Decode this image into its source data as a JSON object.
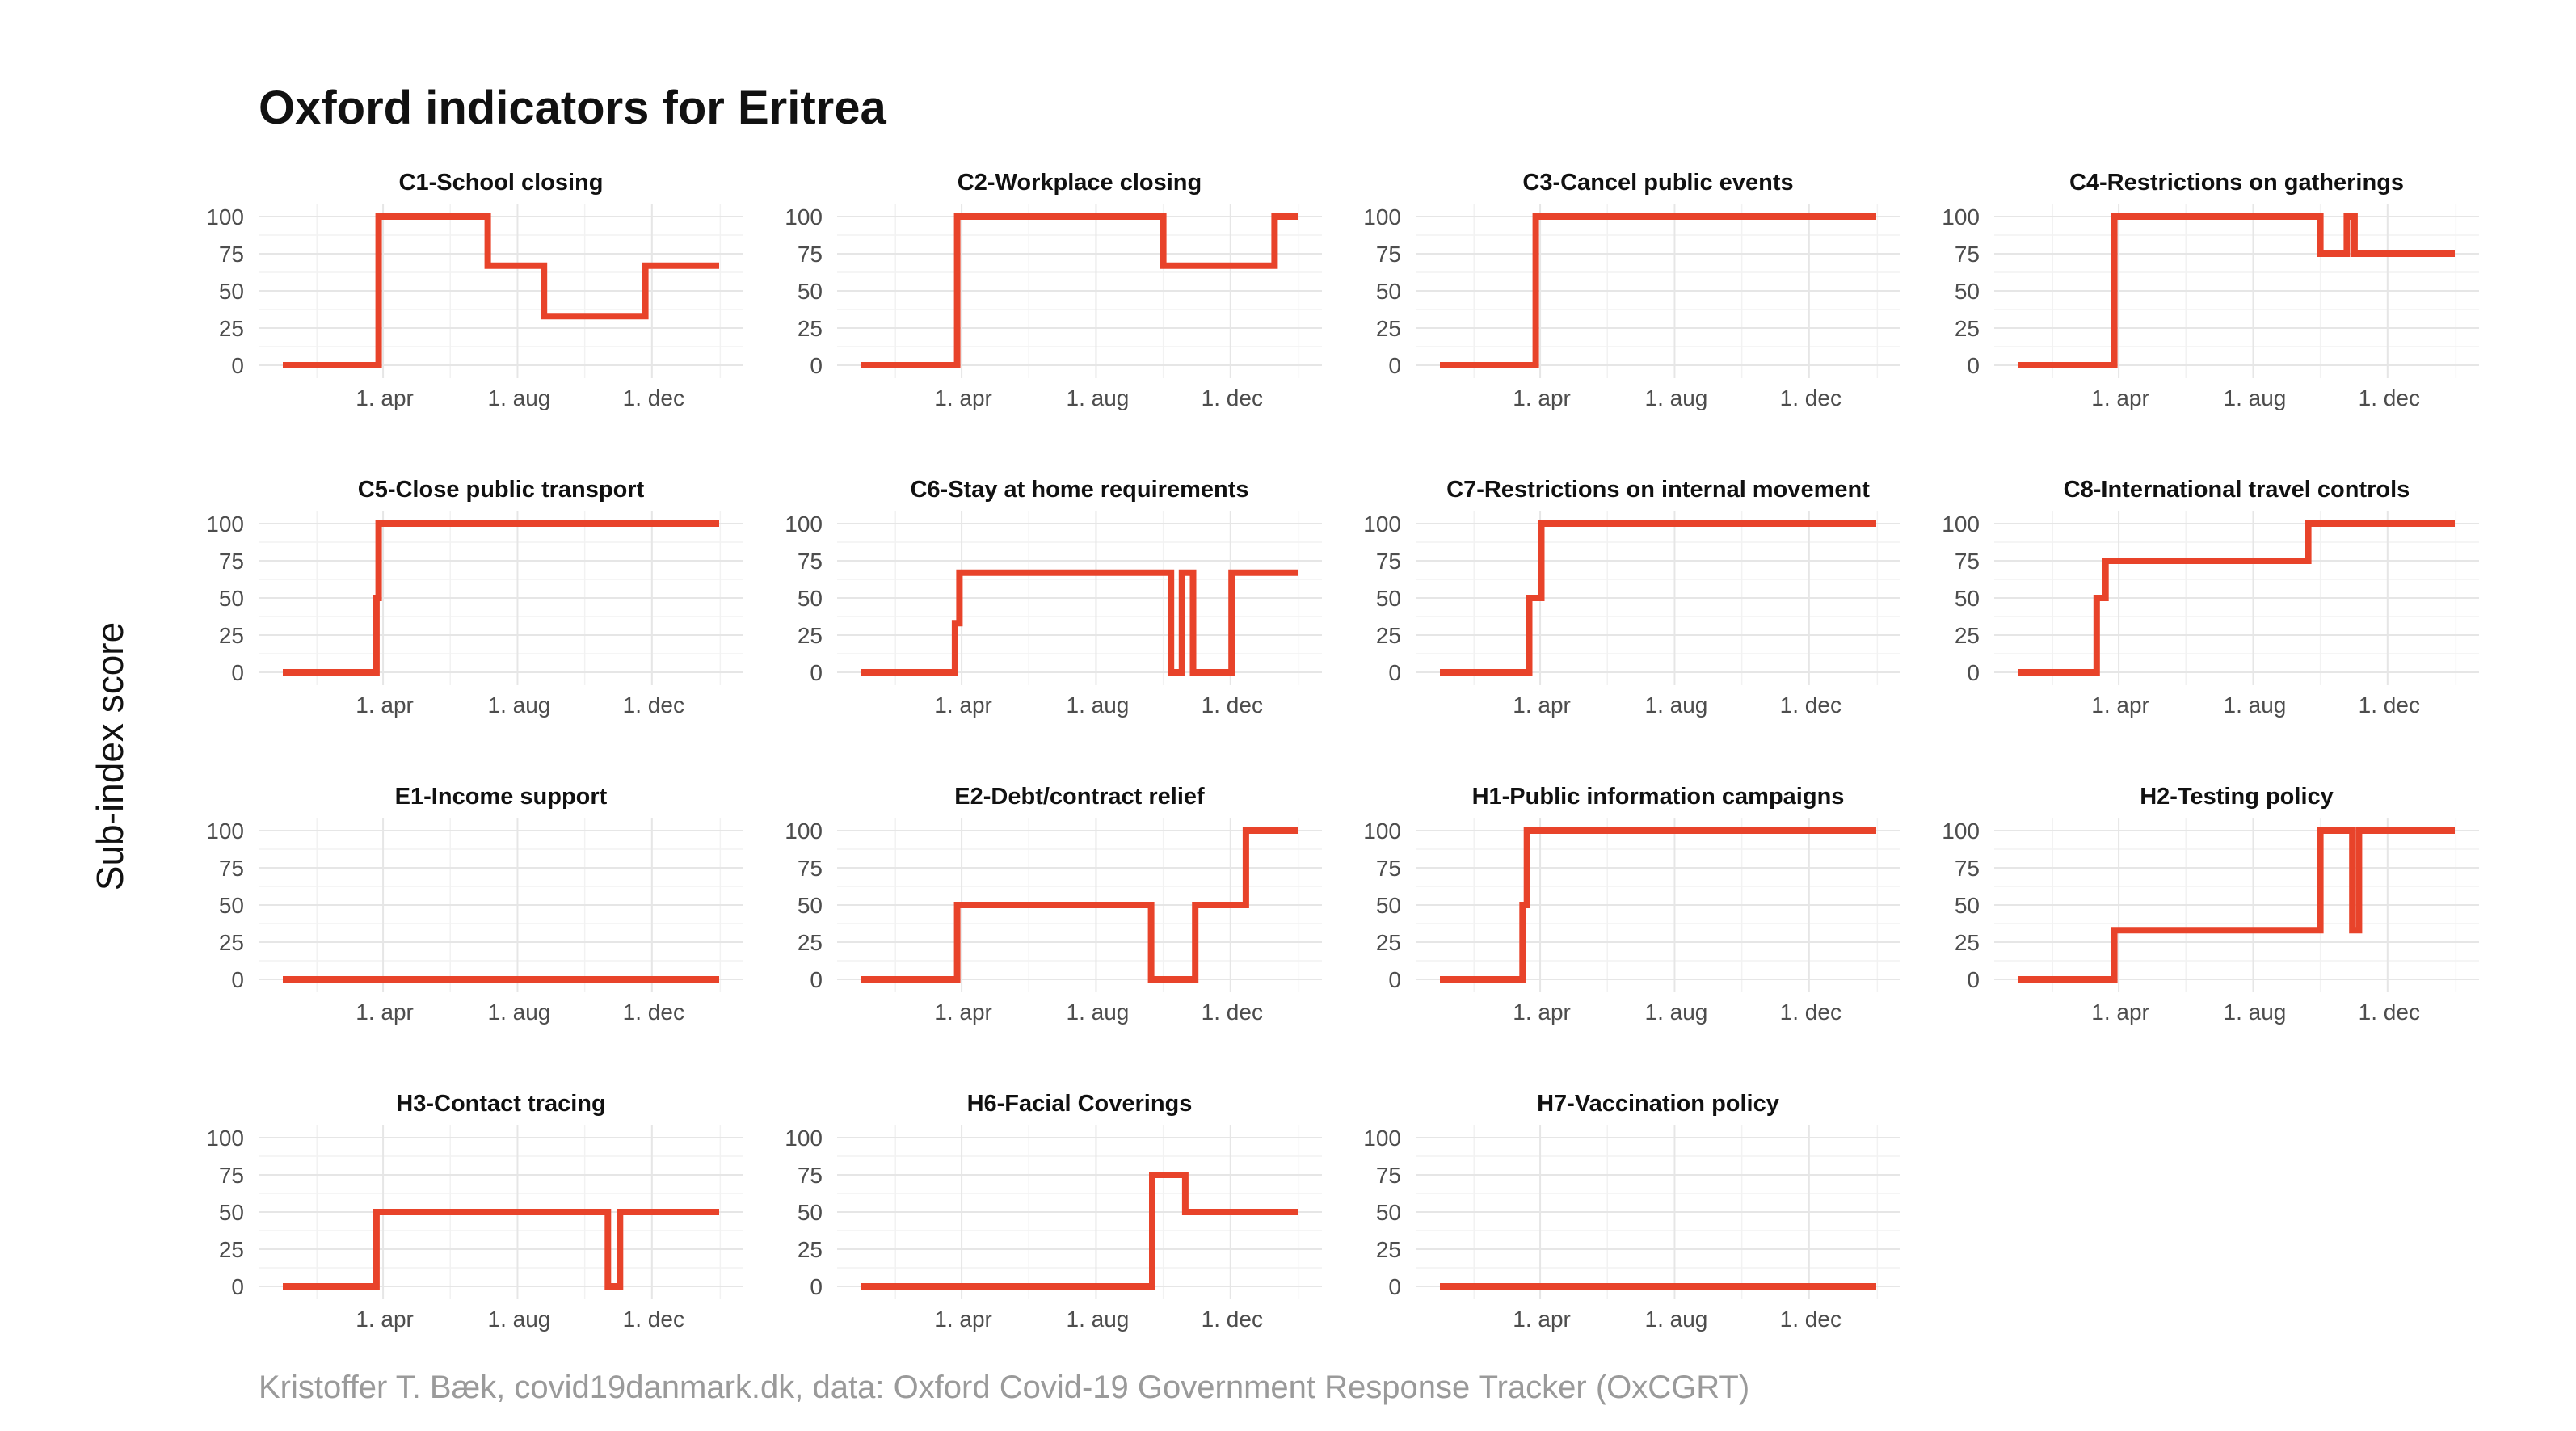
{
  "title": "Oxford indicators for Eritrea",
  "y_axis_title": "Sub-index score",
  "caption": "Kristoffer T. Bæk, covid19danmark.dk, data: Oxford Covid-19 Government Response Tracker (OxCGRT)",
  "colors": {
    "series": "#e8432a",
    "grid": "#e6e6e6",
    "text": "#111111",
    "tick": "#4d4d4d",
    "caption": "#9a9a9a"
  },
  "chart_data": {
    "type": "line",
    "layout": "small multiples, 4 columns",
    "x_axis": {
      "type": "date",
      "range": [
        "2020-01-01",
        "2021-01-31"
      ],
      "tick_values": [
        "2020-04-01",
        "2020-08-01",
        "2020-12-01"
      ],
      "tick_labels": [
        "1. apr",
        "1. aug",
        "1. dec"
      ]
    },
    "y_axis": {
      "range": [
        0,
        100
      ],
      "tick_values": [
        0,
        25,
        50,
        75,
        100
      ],
      "tick_labels": [
        "0",
        "25",
        "50",
        "75",
        "100"
      ]
    },
    "grid": true,
    "panels": [
      {
        "title": "C1-School closing",
        "steps": [
          [
            "2020-01-01",
            0
          ],
          [
            "2020-03-28",
            100
          ],
          [
            "2020-07-05",
            67
          ],
          [
            "2020-08-25",
            33
          ],
          [
            "2020-11-25",
            67
          ]
        ],
        "end": "2021-01-31"
      },
      {
        "title": "C2-Workplace closing",
        "steps": [
          [
            "2020-01-01",
            0
          ],
          [
            "2020-03-28",
            100
          ],
          [
            "2020-10-01",
            67
          ],
          [
            "2021-01-10",
            100
          ]
        ],
        "end": "2021-01-31"
      },
      {
        "title": "C3-Cancel public events",
        "steps": [
          [
            "2020-01-01",
            0
          ],
          [
            "2020-03-28",
            100
          ]
        ],
        "end": "2021-01-31"
      },
      {
        "title": "C4-Restrictions on gatherings",
        "steps": [
          [
            "2020-01-01",
            0
          ],
          [
            "2020-03-28",
            100
          ],
          [
            "2020-10-01",
            75
          ],
          [
            "2020-10-25",
            100
          ],
          [
            "2020-11-01",
            75
          ]
        ],
        "end": "2021-01-31"
      },
      {
        "title": "C5-Close public transport",
        "steps": [
          [
            "2020-01-01",
            0
          ],
          [
            "2020-03-26",
            50
          ],
          [
            "2020-03-28",
            100
          ]
        ],
        "end": "2021-01-31"
      },
      {
        "title": "C6-Stay at home requirements",
        "steps": [
          [
            "2020-01-01",
            0
          ],
          [
            "2020-03-26",
            33
          ],
          [
            "2020-03-30",
            67
          ],
          [
            "2020-10-08",
            0
          ],
          [
            "2020-10-18",
            67
          ],
          [
            "2020-10-28",
            0
          ],
          [
            "2020-12-02",
            67
          ]
        ],
        "end": "2021-01-31"
      },
      {
        "title": "C7-Restrictions on internal movement",
        "steps": [
          [
            "2020-01-01",
            0
          ],
          [
            "2020-03-22",
            50
          ],
          [
            "2020-04-02",
            100
          ]
        ],
        "end": "2021-01-31"
      },
      {
        "title": "C8-International travel controls",
        "steps": [
          [
            "2020-01-01",
            0
          ],
          [
            "2020-03-12",
            50
          ],
          [
            "2020-03-20",
            75
          ],
          [
            "2020-09-20",
            100
          ]
        ],
        "end": "2021-01-31"
      },
      {
        "title": "E1-Income support",
        "steps": [
          [
            "2020-01-01",
            0
          ]
        ],
        "end": "2021-01-31"
      },
      {
        "title": "E2-Debt/contract relief",
        "steps": [
          [
            "2020-01-01",
            0
          ],
          [
            "2020-03-28",
            50
          ],
          [
            "2020-09-20",
            0
          ],
          [
            "2020-10-30",
            50
          ],
          [
            "2020-12-15",
            100
          ]
        ],
        "end": "2021-01-31"
      },
      {
        "title": "H1-Public information campaigns",
        "steps": [
          [
            "2020-01-01",
            0
          ],
          [
            "2020-03-16",
            50
          ],
          [
            "2020-03-20",
            100
          ]
        ],
        "end": "2021-01-31"
      },
      {
        "title": "H2-Testing policy",
        "steps": [
          [
            "2020-01-01",
            0
          ],
          [
            "2020-03-28",
            33
          ],
          [
            "2020-10-01",
            100
          ],
          [
            "2020-10-30",
            33
          ],
          [
            "2020-11-05",
            100
          ]
        ],
        "end": "2021-01-31"
      },
      {
        "title": "H3-Contact tracing",
        "steps": [
          [
            "2020-01-01",
            0
          ],
          [
            "2020-03-26",
            50
          ],
          [
            "2020-10-22",
            0
          ],
          [
            "2020-11-02",
            50
          ]
        ],
        "end": "2021-01-31"
      },
      {
        "title": "H6-Facial Coverings",
        "steps": [
          [
            "2020-01-01",
            0
          ],
          [
            "2020-09-21",
            75
          ],
          [
            "2020-10-21",
            50
          ]
        ],
        "end": "2021-01-31"
      },
      {
        "title": "H7-Vaccination policy",
        "steps": [
          [
            "2020-01-01",
            0
          ]
        ],
        "end": "2021-01-31"
      }
    ]
  }
}
